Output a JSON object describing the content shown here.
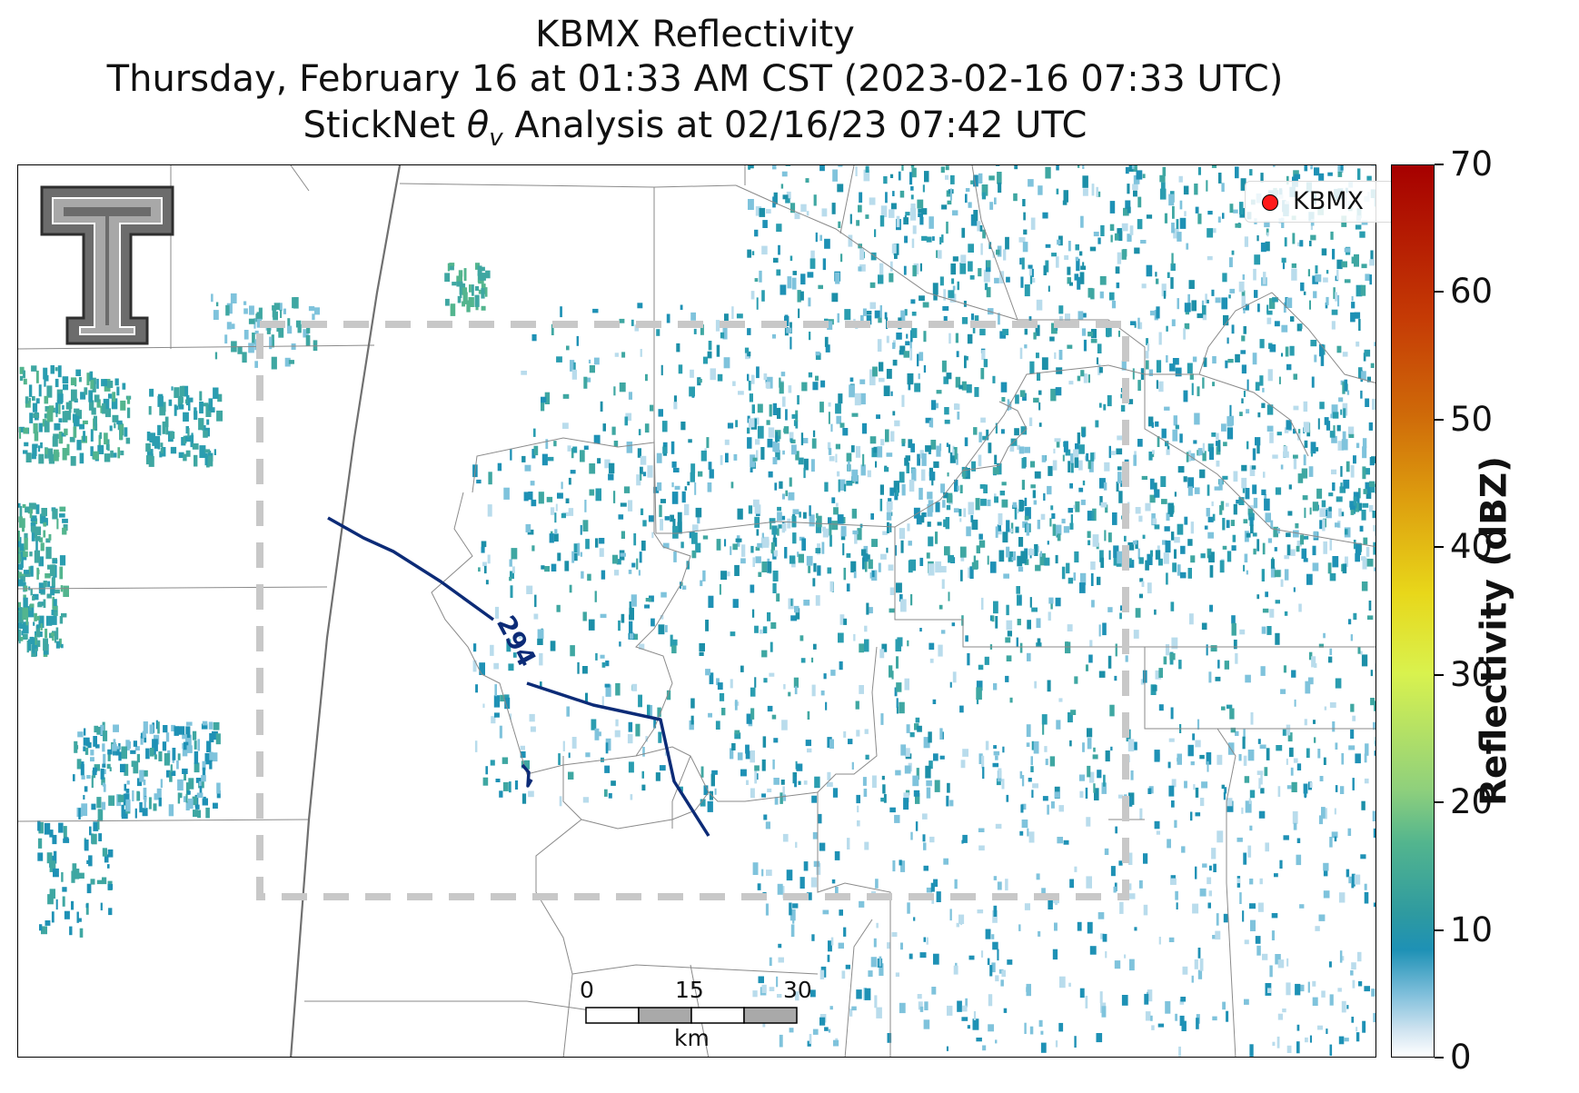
{
  "title": {
    "line1": "KBMX Reflectivity",
    "line2": "Thursday, February 16 at 01:33 AM CST (2023-02-16 07:33 UTC)",
    "line3": "StickNet θv Analysis at 02/16/23 07:42 UTC"
  },
  "legend": {
    "label": "KBMX",
    "marker_color": "#ff1a1a"
  },
  "contour": {
    "label": "294",
    "color": "#0c2b77"
  },
  "colorbar": {
    "label": "Reflectivity (dBZ)",
    "ticks": [
      "0",
      "10",
      "20",
      "30",
      "40",
      "50",
      "60",
      "70"
    ],
    "range": [
      0,
      70
    ],
    "colors": [
      "#ffffff",
      "#1e91b5",
      "#53b58e",
      "#d9f24e",
      "#e8d71a",
      "#cf6a09",
      "#a60000"
    ]
  },
  "scalebar": {
    "ticks": [
      "0",
      "15",
      "30"
    ],
    "unit": "km"
  },
  "logo": {
    "icon": "texas-tech-double-t-logo"
  },
  "analysis_box": {
    "style": "dashed",
    "color": "#c8c8c8"
  }
}
